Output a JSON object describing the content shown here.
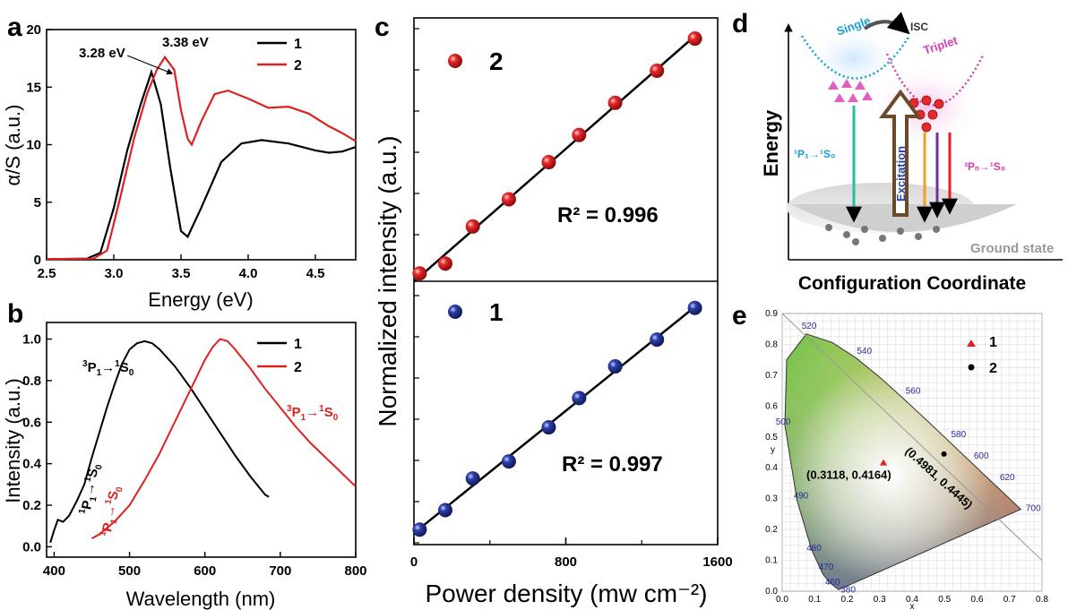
{
  "colors": {
    "series1": "#000000",
    "series2": "#e02020",
    "red_ball": "#e8282a",
    "blue_ball": "#2b3fa8"
  },
  "chart_data": [
    {
      "id": "a",
      "type": "line",
      "panel_label": "a",
      "xlabel": "Energy (eV)",
      "ylabel": "α/S (a.u.)",
      "xlim": [
        2.5,
        4.8
      ],
      "ylim": [
        0,
        20
      ],
      "xticks": [
        "2.5",
        "3.0",
        "3.5",
        "4.0",
        "4.5"
      ],
      "yticks": [
        "0",
        "5",
        "10",
        "15",
        "20"
      ],
      "annotations": [
        "3.28 eV",
        "3.38 eV"
      ],
      "legend_position": "top-right",
      "series": [
        {
          "name": "1",
          "color": "#000000",
          "points": [
            [
              2.5,
              0.05
            ],
            [
              2.8,
              0.1
            ],
            [
              2.9,
              0.6
            ],
            [
              3.0,
              4.5
            ],
            [
              3.1,
              9.5
            ],
            [
              3.2,
              13.5
            ],
            [
              3.28,
              16.3
            ],
            [
              3.35,
              13.5
            ],
            [
              3.42,
              8
            ],
            [
              3.5,
              2.5
            ],
            [
              3.55,
              2
            ],
            [
              3.65,
              4.5
            ],
            [
              3.8,
              8.5
            ],
            [
              3.95,
              10.1
            ],
            [
              4.1,
              10.4
            ],
            [
              4.3,
              10.1
            ],
            [
              4.5,
              9.5
            ],
            [
              4.6,
              9.3
            ],
            [
              4.7,
              9.4
            ],
            [
              4.8,
              9.8
            ]
          ]
        },
        {
          "name": "2",
          "color": "#e02020",
          "points": [
            [
              2.5,
              0.05
            ],
            [
              2.85,
              0.1
            ],
            [
              2.95,
              0.8
            ],
            [
              3.05,
              5.5
            ],
            [
              3.15,
              10.5
            ],
            [
              3.25,
              14.5
            ],
            [
              3.32,
              16.5
            ],
            [
              3.38,
              17.6
            ],
            [
              3.45,
              16.5
            ],
            [
              3.5,
              13
            ],
            [
              3.55,
              10.5
            ],
            [
              3.58,
              10
            ],
            [
              3.65,
              12
            ],
            [
              3.75,
              14.4
            ],
            [
              3.85,
              14.7
            ],
            [
              4.0,
              14
            ],
            [
              4.15,
              13.2
            ],
            [
              4.3,
              13.3
            ],
            [
              4.45,
              12.7
            ],
            [
              4.6,
              11.6
            ],
            [
              4.7,
              11
            ],
            [
              4.8,
              10.3
            ]
          ]
        }
      ]
    },
    {
      "id": "b",
      "type": "line",
      "panel_label": "b",
      "xlabel": "Wavelength (nm)",
      "ylabel": "Intensity (a.u.)",
      "xlim": [
        390,
        800
      ],
      "ylim": [
        -0.05,
        1.08
      ],
      "xticks": [
        "400",
        "500",
        "600",
        "700",
        "800"
      ],
      "yticks": [
        "0.0",
        "0.2",
        "0.4",
        "0.6",
        "0.8",
        "1.0"
      ],
      "legend_position": "top-right",
      "series": [
        {
          "name": "1",
          "color": "#000000",
          "points": [
            [
              395,
              0.02
            ],
            [
              400,
              0.08
            ],
            [
              405,
              0.13
            ],
            [
              412,
              0.12
            ],
            [
              420,
              0.15
            ],
            [
              430,
              0.22
            ],
            [
              440,
              0.3
            ],
            [
              450,
              0.43
            ],
            [
              460,
              0.55
            ],
            [
              470,
              0.67
            ],
            [
              480,
              0.78
            ],
            [
              490,
              0.88
            ],
            [
              500,
              0.95
            ],
            [
              510,
              0.98
            ],
            [
              520,
              0.99
            ],
            [
              530,
              0.98
            ],
            [
              540,
              0.95
            ],
            [
              560,
              0.87
            ],
            [
              580,
              0.77
            ],
            [
              600,
              0.66
            ],
            [
              620,
              0.55
            ],
            [
              640,
              0.44
            ],
            [
              660,
              0.34
            ],
            [
              680,
              0.25
            ],
            [
              685,
              0.24
            ]
          ]
        },
        {
          "name": "2",
          "color": "#e02020",
          "points": [
            [
              450,
              0.04
            ],
            [
              460,
              0.06
            ],
            [
              470,
              0.09
            ],
            [
              480,
              0.12
            ],
            [
              500,
              0.2
            ],
            [
              520,
              0.32
            ],
            [
              540,
              0.45
            ],
            [
              560,
              0.6
            ],
            [
              580,
              0.75
            ],
            [
              600,
              0.9
            ],
            [
              610,
              0.96
            ],
            [
              620,
              1.0
            ],
            [
              630,
              0.99
            ],
            [
              640,
              0.95
            ],
            [
              660,
              0.86
            ],
            [
              680,
              0.76
            ],
            [
              700,
              0.67
            ],
            [
              720,
              0.58
            ],
            [
              740,
              0.5
            ],
            [
              760,
              0.43
            ],
            [
              780,
              0.36
            ],
            [
              800,
              0.29
            ]
          ]
        }
      ]
    },
    {
      "id": "c",
      "type": "scatter",
      "panel_label": "c",
      "xlabel": "Power density (mw cm⁻²)",
      "ylabel": "Normalized intensity (a.u.)",
      "xlim": [
        0,
        1600
      ],
      "xticks": [
        "0",
        "800",
        "1600"
      ],
      "subplots": [
        {
          "label": "2",
          "r2_text": "R² = 0.996",
          "color": "#e8282a",
          "ylim": [
            0,
            1
          ],
          "x": [
            30,
            165,
            310,
            500,
            710,
            870,
            1060,
            1280,
            1480
          ],
          "y": [
            0.01,
            0.05,
            0.2,
            0.31,
            0.46,
            0.57,
            0.7,
            0.83,
            0.96
          ]
        },
        {
          "label": "1",
          "r2_text": "R² = 0.997",
          "color": "#2b3fa8",
          "ylim": [
            0,
            1
          ],
          "x": [
            30,
            165,
            310,
            500,
            710,
            870,
            1060,
            1280,
            1480
          ],
          "y": [
            0.01,
            0.09,
            0.22,
            0.29,
            0.43,
            0.55,
            0.68,
            0.79,
            0.92
          ]
        }
      ]
    },
    {
      "id": "d",
      "type": "diagram",
      "panel_label": "d",
      "ylabel": "Energy",
      "xlabel": "Configuration Coordinate",
      "labels": {
        "single": "Single",
        "triplet": "Triplet",
        "isc": "ISC",
        "excitation": "Excitation",
        "ground": "Ground state",
        "left_trans": "¹P₁→¹S₀",
        "right_trans": "³Pₙ→¹S₀"
      }
    },
    {
      "id": "e",
      "type": "scatter",
      "panel_label": "e",
      "xlabel": "x",
      "ylabel": "y",
      "xlim": [
        0,
        0.8
      ],
      "ylim": [
        0,
        0.9
      ],
      "xticks": [
        "0.0",
        "0.1",
        "0.2",
        "0.3",
        "0.4",
        "0.5",
        "0.6",
        "0.7",
        "0.8"
      ],
      "yticks": [
        "0.0",
        "0.1",
        "0.2",
        "0.3",
        "0.4",
        "0.5",
        "0.6",
        "0.7",
        "0.8",
        "0.9"
      ],
      "legend_position": "top-right",
      "wavelength_labels": [
        "380",
        "460",
        "470",
        "480",
        "490",
        "500",
        "520",
        "540",
        "560",
        "580",
        "600",
        "620",
        "700"
      ],
      "series": [
        {
          "name": "1",
          "marker": "triangle",
          "color": "#e02020",
          "x": [
            0.3118
          ],
          "y": [
            0.4164
          ],
          "label": "(0.3118, 0.4164)"
        },
        {
          "name": "2",
          "marker": "circle",
          "color": "#000000",
          "x": [
            0.4981
          ],
          "y": [
            0.4445
          ],
          "label": "(0.4981, 0.4445)"
        }
      ]
    }
  ]
}
